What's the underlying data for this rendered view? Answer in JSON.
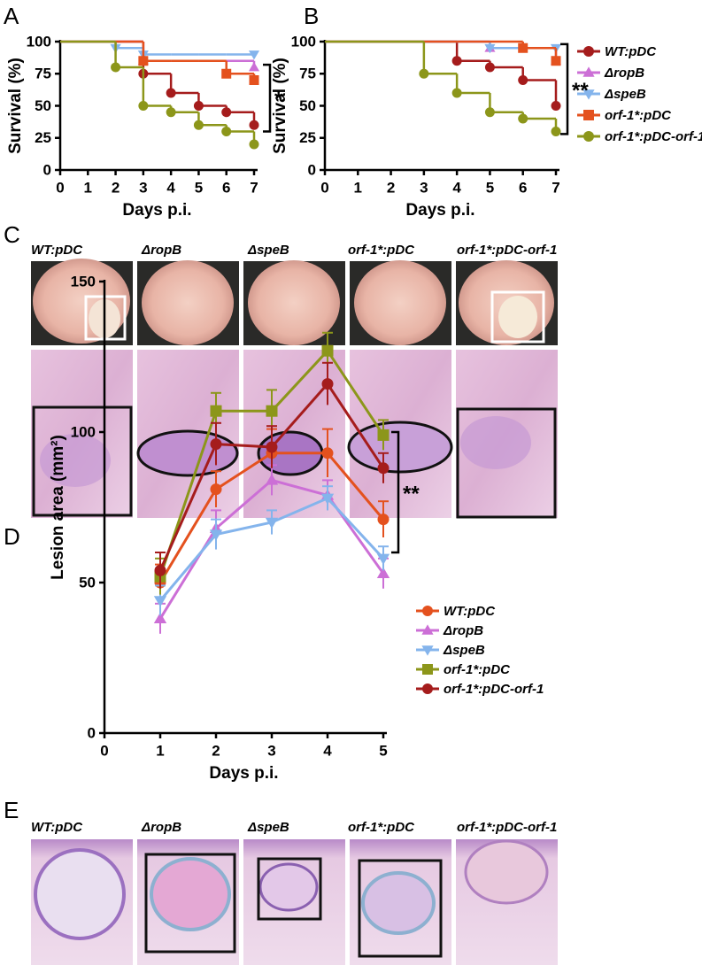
{
  "panel_labels": [
    "A",
    "B",
    "C",
    "D",
    "E"
  ],
  "image_labels": {
    "C": [
      "WT:pDC",
      "ΔropB",
      "ΔspeB",
      "orf-1*:pDC",
      "orf-1*:pDC-orf-1"
    ],
    "E": [
      "WT:pDC",
      "ΔropB",
      "ΔspeB",
      "orf-1*:pDC",
      "orf-1*:pDC-orf-1"
    ]
  },
  "chart_data": [
    {
      "type": "step",
      "xlabel": "Days p.i.",
      "ylabel": "Survival (%)",
      "annotation": "*",
      "x": [
        0,
        1,
        2,
        3,
        4,
        5,
        6,
        7
      ],
      "xlim": [
        0,
        7
      ],
      "xticks": [
        0,
        1,
        2,
        3,
        4,
        5,
        6,
        7
      ],
      "ylim": [
        0,
        100
      ],
      "yticks": [
        0,
        25,
        50,
        75,
        100
      ],
      "series": [
        {
          "name": "WT:pDC",
          "color": "#a51c1c",
          "marker": "circle",
          "values": [
            100,
            100,
            100,
            75,
            60,
            50,
            45,
            35
          ]
        },
        {
          "name": "ΔropB",
          "color": "#cc6fd6",
          "marker": "triangle-up",
          "values": [
            100,
            100,
            100,
            85,
            85,
            85,
            85,
            80
          ]
        },
        {
          "name": "ΔspeB",
          "color": "#84b4ec",
          "marker": "triangle-down",
          "values": [
            100,
            100,
            95,
            90,
            90,
            90,
            90,
            90
          ]
        },
        {
          "name": "orf-1*:pDC",
          "color": "#e4511e",
          "marker": "square",
          "values": [
            100,
            100,
            100,
            85,
            85,
            85,
            75,
            70
          ]
        },
        {
          "name": "orf-1*:pDC-orf-1",
          "color": "#8c961a",
          "marker": "circle",
          "values": [
            100,
            100,
            80,
            50,
            45,
            35,
            30,
            20
          ]
        }
      ]
    },
    {
      "type": "step",
      "xlabel": "Days p.i.",
      "ylabel": "Survival (%)",
      "annotation": "**",
      "legend": "right",
      "x": [
        0,
        1,
        2,
        3,
        4,
        5,
        6,
        7
      ],
      "xlim": [
        0,
        7
      ],
      "xticks": [
        0,
        1,
        2,
        3,
        4,
        5,
        6,
        7
      ],
      "ylim": [
        0,
        100
      ],
      "yticks": [
        0,
        25,
        50,
        75,
        100
      ],
      "series": [
        {
          "name": "WT:pDC",
          "color": "#a51c1c",
          "marker": "circle",
          "values": [
            100,
            100,
            100,
            100,
            85,
            80,
            70,
            50
          ]
        },
        {
          "name": "ΔropB",
          "color": "#cc6fd6",
          "marker": "triangle-up",
          "values": [
            100,
            100,
            100,
            100,
            100,
            95,
            95,
            85
          ]
        },
        {
          "name": "ΔspeB",
          "color": "#84b4ec",
          "marker": "triangle-down",
          "values": [
            100,
            100,
            100,
            100,
            100,
            95,
            95,
            95
          ]
        },
        {
          "name": "orf-1*:pDC",
          "color": "#e4511e",
          "marker": "square",
          "values": [
            100,
            100,
            100,
            100,
            100,
            100,
            95,
            85
          ]
        },
        {
          "name": "orf-1*:pDC-orf-1",
          "color": "#8c961a",
          "marker": "circle",
          "values": [
            100,
            100,
            100,
            75,
            60,
            45,
            40,
            30
          ]
        }
      ]
    },
    {
      "type": "line",
      "xlabel": "Days p.i.",
      "ylabel": "Lesion area (mm²)",
      "annotation": "**",
      "legend": "right",
      "x": [
        1,
        2,
        3,
        4,
        5
      ],
      "xlim": [
        0,
        5
      ],
      "xticks": [
        0,
        1,
        2,
        3,
        4,
        5
      ],
      "ylim": [
        0,
        150
      ],
      "yticks": [
        0,
        50,
        100,
        150
      ],
      "series": [
        {
          "name": "WT:pDC",
          "color": "#e4511e",
          "marker": "circle",
          "values": [
            50,
            81,
            93,
            93,
            71
          ],
          "errors": [
            6,
            6,
            8,
            8,
            6
          ]
        },
        {
          "name": "ΔropB",
          "color": "#cc6fd6",
          "marker": "triangle-up",
          "values": [
            38,
            68,
            84,
            79,
            53
          ],
          "errors": [
            5,
            6,
            5,
            5,
            5
          ]
        },
        {
          "name": "ΔspeB",
          "color": "#84b4ec",
          "marker": "triangle-down",
          "values": [
            44,
            66,
            70,
            78,
            58
          ],
          "errors": [
            5,
            5,
            4,
            4,
            4
          ]
        },
        {
          "name": "orf-1*:pDC",
          "color": "#8c961a",
          "marker": "square",
          "values": [
            52,
            107,
            107,
            127,
            99
          ],
          "errors": [
            6,
            6,
            7,
            6,
            5
          ]
        },
        {
          "name": "orf-1*:pDC-orf-1",
          "color": "#a51c1c",
          "marker": "circle",
          "values": [
            54,
            96,
            95,
            116,
            88
          ],
          "errors": [
            6,
            7,
            7,
            7,
            5
          ]
        }
      ]
    }
  ]
}
